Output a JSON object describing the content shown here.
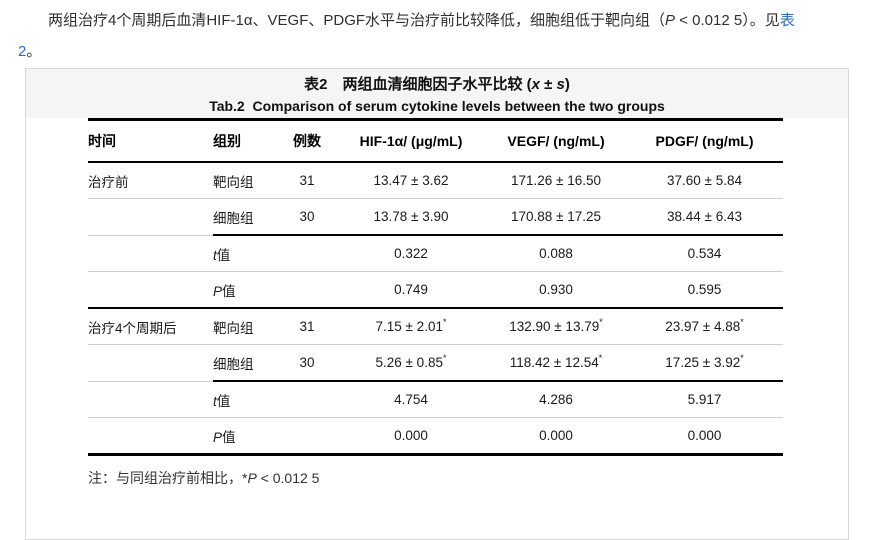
{
  "paragraph": {
    "line1": [
      {
        "t": "　　两组治疗4个周期后血清HIF-1α、VEGF、PDGF水平与治疗前比较降低，细胞组低于靶向组（"
      },
      {
        "t": "P",
        "style": "italic"
      },
      {
        "t": " < 0.012 5）。见"
      },
      {
        "t": "表",
        "style": "link"
      }
    ],
    "line2": [
      {
        "t": "2",
        "style": "link"
      },
      {
        "t": "。"
      }
    ]
  },
  "caption": {
    "zh_segments": [
      {
        "t": "表2　两组血清细胞因子水平比较 ("
      },
      {
        "t": "x",
        "style": "italic"
      },
      {
        "t": " ± "
      },
      {
        "t": "s",
        "style": "italic"
      },
      {
        "t": ")"
      }
    ],
    "en": "Tab.2  Comparison of serum cytokine levels between the two groups"
  },
  "table": {
    "headers": [
      "时间",
      "组别",
      "例数",
      "HIF-1α/ (μg/mL)",
      "VEGF/ (ng/mL)",
      "PDGF/ (ng/mL)"
    ],
    "rows": [
      {
        "cells": [
          "治疗前",
          "靶向组",
          "31",
          "13.47 ± 3.62",
          "171.26 ± 16.50",
          "37.60 ± 5.84"
        ],
        "border": "thin",
        "stat": false
      },
      {
        "cells": [
          "",
          "细胞组",
          "30",
          "13.78 ± 3.90",
          "170.88 ± 17.25",
          "38.44 ± 6.43"
        ],
        "border": "groupend",
        "stat": false
      },
      {
        "cells": [
          "",
          "t值",
          "",
          "0.322",
          "0.088",
          "0.534"
        ],
        "border": "thin",
        "stat": true
      },
      {
        "cells": [
          "",
          "P值",
          "",
          "0.749",
          "0.930",
          "0.595"
        ],
        "border": "section",
        "stat": true
      },
      {
        "cells": [
          "治疗4个周期后",
          "靶向组",
          "31",
          "7.15 ± 2.01*",
          "132.90 ± 13.79*",
          "23.97 ± 4.88*"
        ],
        "border": "thin",
        "stat": false
      },
      {
        "cells": [
          "",
          "细胞组",
          "30",
          "5.26 ± 0.85*",
          "118.42 ± 12.54*",
          "17.25 ± 3.92*"
        ],
        "border": "groupend",
        "stat": false
      },
      {
        "cells": [
          "",
          "t值",
          "",
          "4.754",
          "4.286",
          "5.917"
        ],
        "border": "thin",
        "stat": true
      },
      {
        "cells": [
          "",
          "P值",
          "",
          "0.000",
          "0.000",
          "0.000"
        ],
        "border": "bottom",
        "stat": true
      }
    ]
  },
  "note": {
    "segments": [
      {
        "t": "注：与同组治疗前相比，"
      },
      {
        "t": "*"
      },
      {
        "t": "P",
        "style": "italic"
      },
      {
        "t": " < 0.012 5"
      }
    ]
  },
  "colors": {
    "link": "#2a6ebb",
    "caption_bg": "#f5f5f5",
    "box_border": "#d9d9d9",
    "thin_line": "#cfcfcf",
    "thick_line": "#000000"
  }
}
